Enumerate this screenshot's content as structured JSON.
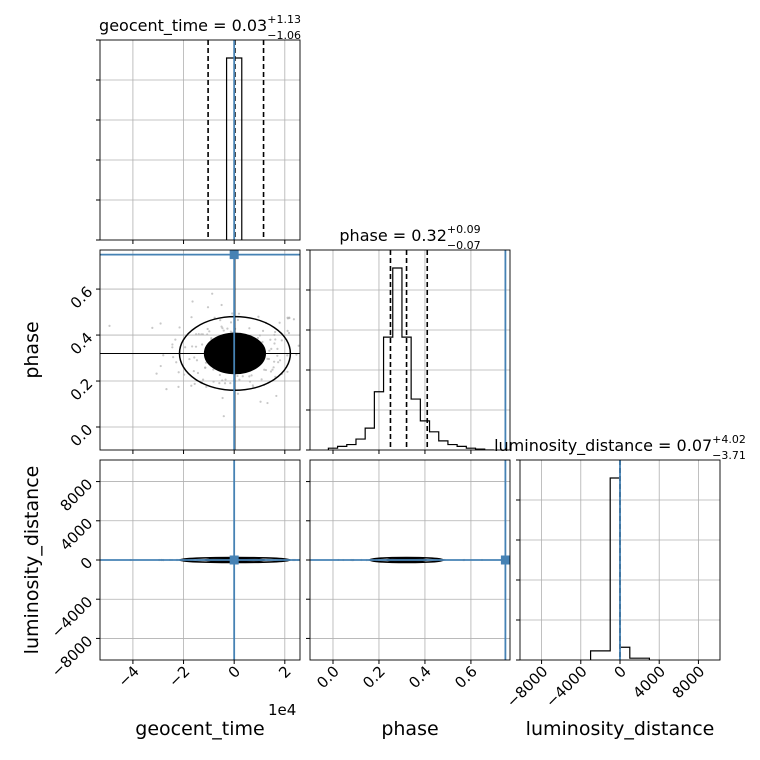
{
  "chart_data": {
    "type": "corner",
    "parameters": [
      "geocent_time",
      "phase",
      "luminosity_distance"
    ],
    "panel_titles": [
      {
        "param": "geocent_time",
        "prefix": "geocent_time = ",
        "value": "0.03",
        "plus": "+1.13",
        "minus": "−1.06"
      },
      {
        "param": "phase",
        "prefix": "phase = ",
        "value": "0.32",
        "plus": "+0.09",
        "minus": "−0.07"
      },
      {
        "param": "luminosity_distance",
        "prefix": "luminosity_distance = ",
        "value": "0.07",
        "plus": "+4.02",
        "minus": "−3.71"
      }
    ],
    "xlabels": [
      "geocent_time",
      "phase",
      "luminosity_distance"
    ],
    "ylabels": [
      "phase",
      "luminosity_distance"
    ],
    "offset_text": "1e4",
    "ranges": {
      "geocent_time": [
        -5.3,
        2.6
      ],
      "phase": [
        -0.1,
        0.77
      ],
      "luminosity_distance": [
        -10200,
        10200
      ]
    },
    "ticks": {
      "geocent_time": {
        "values": [
          -4,
          -2,
          0,
          2
        ],
        "labels": [
          "−4",
          "−2",
          "0",
          "2"
        ]
      },
      "phase": {
        "values": [
          0.0,
          0.2,
          0.4,
          0.6
        ],
        "labels": [
          "0.0",
          "0.2",
          "0.4",
          "0.6"
        ]
      },
      "luminosity_distance": {
        "values": [
          -8000,
          -4000,
          0,
          4000,
          8000
        ],
        "labels": [
          "−8000",
          "−4000",
          "0",
          "4000",
          "8000"
        ]
      }
    },
    "injection": {
      "geocent_time": 0,
      "phase": 0.75,
      "luminosity_distance": 0
    },
    "quantiles": {
      "geocent_time": [
        -1.03,
        0.03,
        1.16
      ],
      "phase": [
        0.25,
        0.32,
        0.41
      ],
      "luminosity_distance": [
        -3.64,
        0.07,
        4.09
      ]
    },
    "histograms": {
      "geocent_time": {
        "edges": [
          -0.3,
          0.3
        ],
        "counts": [
          1.0
        ]
      },
      "phase": {
        "edges": [
          -0.02,
          0.02,
          0.06,
          0.1,
          0.14,
          0.18,
          0.22,
          0.26,
          0.3,
          0.34,
          0.38,
          0.42,
          0.46,
          0.5,
          0.54,
          0.58,
          0.62,
          0.66,
          0.7
        ],
        "counts": [
          0.01,
          0.02,
          0.03,
          0.06,
          0.12,
          0.32,
          0.62,
          1.0,
          0.62,
          0.28,
          0.16,
          0.1,
          0.05,
          0.03,
          0.02,
          0.01,
          0.005,
          0.0
        ]
      },
      "luminosity_distance": {
        "edges": [
          -3000,
          -1000,
          0,
          1000,
          3000
        ],
        "counts": [
          0.05,
          1.0,
          0.07,
          0.01
        ]
      }
    },
    "grid": true,
    "color_truth": "#4682b4",
    "color_hist": "#000000",
    "color_points": "#b0b0b0",
    "grid_color": "#b0b0b0"
  }
}
